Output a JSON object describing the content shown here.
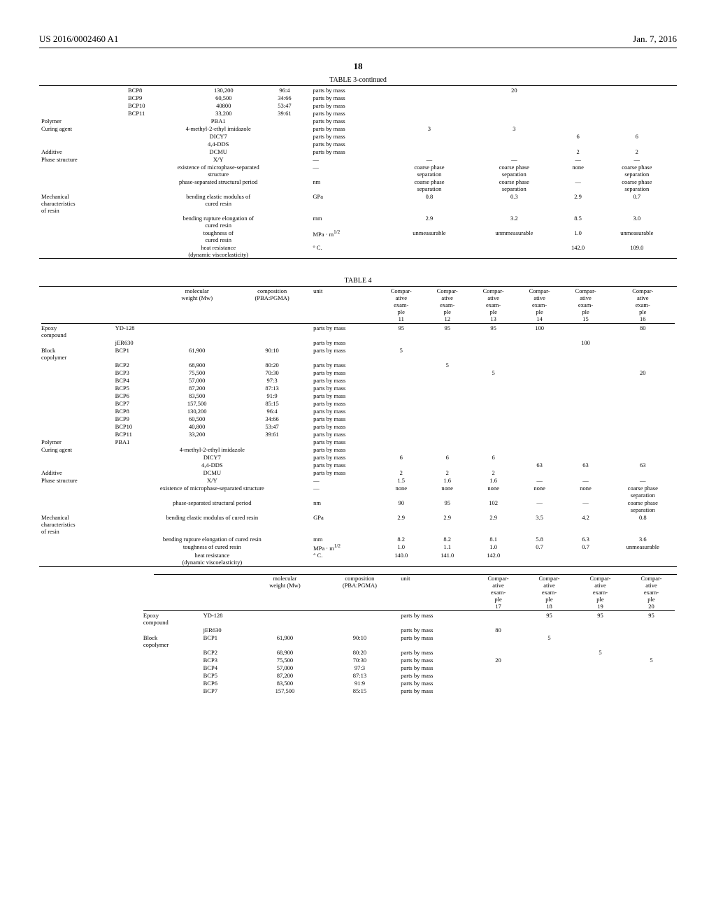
{
  "page": {
    "patent_no": "US 2016/0002460 A1",
    "date": "Jan. 7, 2016",
    "page_number": "18"
  },
  "table3": {
    "title": "TABLE 3-continued",
    "bcp_extra": [
      {
        "name": "BCP8",
        "mw": "130,200",
        "comp": "96:4",
        "unit": "parts by mass",
        "v1": "",
        "v2": "20",
        "v3": "",
        "v4": ""
      },
      {
        "name": "BCP9",
        "mw": "60,500",
        "comp": "34:66",
        "unit": "parts by mass",
        "v1": "",
        "v2": "",
        "v3": "",
        "v4": ""
      },
      {
        "name": "BCP10",
        "mw": "40800",
        "comp": "53:47",
        "unit": "parts by mass",
        "v1": "",
        "v2": "",
        "v3": "",
        "v4": ""
      },
      {
        "name": "BCP11",
        "mw": "33,200",
        "comp": "39:61",
        "unit": "parts by mass",
        "v1": "",
        "v2": "",
        "v3": "",
        "v4": ""
      }
    ],
    "rows": [
      {
        "cat": "Polymer",
        "label": "PBA1",
        "mw": "",
        "comp": "",
        "unit": "parts by mass",
        "v1": "",
        "v2": "",
        "v3": "",
        "v4": ""
      },
      {
        "cat": "Curing agent",
        "label": "4-methyl-2-ethyl imidazole",
        "unit": "parts by mass",
        "v1": "3",
        "v2": "3",
        "v3": "",
        "v4": ""
      },
      {
        "cat": "",
        "label": "DICY7",
        "unit": "parts by mass",
        "v1": "",
        "v2": "",
        "v3": "6",
        "v4": "6"
      },
      {
        "cat": "",
        "label": "4,4-DDS",
        "unit": "parts by mass",
        "v1": "",
        "v2": "",
        "v3": "",
        "v4": ""
      },
      {
        "cat": "Additive",
        "label": "DCMU",
        "unit": "parts by mass",
        "v1": "",
        "v2": "",
        "v3": "2",
        "v4": "2"
      },
      {
        "cat": "Phase structure",
        "label": "X/Y",
        "unit": "—",
        "v1": "—",
        "v2": "—",
        "v3": "—",
        "v4": "—"
      },
      {
        "cat": "",
        "label": "existence of microphase-separated structure",
        "unit": "—",
        "v1": "coarse phase separation",
        "v2": "coarse phase separation",
        "v3": "none",
        "v4": "coarse phase separation"
      },
      {
        "cat": "",
        "label": "phase-separated structural period",
        "unit": "nm",
        "v1": "coarse phase separation",
        "v2": "coarse phase separation",
        "v3": "—",
        "v4": "coarse phase separation"
      },
      {
        "cat": "Mechanical characteristics of resin",
        "label": "bending elastic modulus of cured resin",
        "unit": "GPa",
        "v1": "0.8",
        "v2": "0.3",
        "v3": "2.9",
        "v4": "0.7"
      },
      {
        "cat": "",
        "label": "bending rupture elongation of cured resin",
        "unit": "mm",
        "v1": "2.9",
        "v2": "3.2",
        "v3": "8.5",
        "v4": "3.0"
      },
      {
        "cat": "",
        "label": "toughness of cured resin",
        "unit": "MPa · m<sup>1/2</sup>",
        "v1": "unmeasurable",
        "v2": "unmmeasurable",
        "v3": "1.0",
        "v4": "unmeasurable"
      },
      {
        "cat": "",
        "label": "heat resistance (dynamic viscoelasticity)",
        "unit": "° C.",
        "v1": "",
        "v2": "",
        "v3": "142.0",
        "v4": "109.0"
      }
    ]
  },
  "table4": {
    "title": "TABLE 4",
    "head_cols": [
      "molecular weight (Mw)",
      "composition (PBA:PGMA)",
      "unit",
      "Compar- ative exam- ple 11",
      "Compar- ative exam- ple 12",
      "Compar- ative exam- ple 13",
      "Compar- ative exam- ple 14",
      "Compar- ative exam- ple 15",
      "Compar- ative exam- ple 16"
    ],
    "rows": [
      {
        "cat": "Epoxy compound",
        "label": "YD-128",
        "mw": "",
        "comp": "",
        "unit": "parts by mass",
        "v": [
          "95",
          "95",
          "95",
          "100",
          "",
          "80"
        ]
      },
      {
        "cat": "",
        "label": "jER630",
        "mw": "",
        "comp": "",
        "unit": "parts by mass",
        "v": [
          "",
          "",
          "",
          "",
          "100",
          ""
        ]
      },
      {
        "cat": "Block copolymer",
        "label": "BCP1",
        "mw": "61,900",
        "comp": "90:10",
        "unit": "parts by mass",
        "v": [
          "5",
          "",
          "",
          "",
          "",
          ""
        ]
      },
      {
        "cat": "",
        "label": "BCP2",
        "mw": "68,900",
        "comp": "80:20",
        "unit": "parts by mass",
        "v": [
          "",
          "5",
          "",
          "",
          "",
          ""
        ]
      },
      {
        "cat": "",
        "label": "BCP3",
        "mw": "75,500",
        "comp": "70:30",
        "unit": "parts by mass",
        "v": [
          "",
          "",
          "5",
          "",
          "",
          "20"
        ]
      },
      {
        "cat": "",
        "label": "BCP4",
        "mw": "57,000",
        "comp": "97:3",
        "unit": "parts by mass",
        "v": [
          "",
          "",
          "",
          "",
          "",
          ""
        ]
      },
      {
        "cat": "",
        "label": "BCP5",
        "mw": "87,200",
        "comp": "87:13",
        "unit": "parts by mass",
        "v": [
          "",
          "",
          "",
          "",
          "",
          ""
        ]
      },
      {
        "cat": "",
        "label": "BCP6",
        "mw": "83,500",
        "comp": "91:9",
        "unit": "parts by mass",
        "v": [
          "",
          "",
          "",
          "",
          "",
          ""
        ]
      },
      {
        "cat": "",
        "label": "BCP7",
        "mw": "157,500",
        "comp": "85:15",
        "unit": "parts by mass",
        "v": [
          "",
          "",
          "",
          "",
          "",
          ""
        ]
      },
      {
        "cat": "",
        "label": "BCP8",
        "mw": "130,200",
        "comp": "96:4",
        "unit": "parts by mass",
        "v": [
          "",
          "",
          "",
          "",
          "",
          ""
        ]
      },
      {
        "cat": "",
        "label": "BCP9",
        "mw": "60,500",
        "comp": "34:66",
        "unit": "parts by mass",
        "v": [
          "",
          "",
          "",
          "",
          "",
          ""
        ]
      },
      {
        "cat": "",
        "label": "BCP10",
        "mw": "40,800",
        "comp": "53:47",
        "unit": "parts by mass",
        "v": [
          "",
          "",
          "",
          "",
          "",
          ""
        ]
      },
      {
        "cat": "",
        "label": "BCP11",
        "mw": "33,200",
        "comp": "39:61",
        "unit": "parts by mass",
        "v": [
          "",
          "",
          "",
          "",
          "",
          ""
        ]
      },
      {
        "cat": "Polymer",
        "label": "PBA1",
        "mw": "",
        "comp": "",
        "unit": "parts by mass",
        "v": [
          "",
          "",
          "",
          "",
          "",
          ""
        ]
      },
      {
        "cat": "Curing agent",
        "label": "4-methyl-2-ethyl imidazole",
        "unit": "parts by mass",
        "v": [
          "",
          "",
          "",
          "",
          "",
          ""
        ]
      },
      {
        "cat": "",
        "label": "DICY7",
        "unit": "parts by mass",
        "v": [
          "6",
          "6",
          "6",
          "",
          "",
          ""
        ]
      },
      {
        "cat": "",
        "label": "4,4-DDS",
        "unit": "parts by mass",
        "v": [
          "",
          "",
          "",
          "63",
          "63",
          "63"
        ]
      },
      {
        "cat": "Additive",
        "label": "DCMU",
        "unit": "parts by mass",
        "v": [
          "2",
          "2",
          "2",
          "",
          "",
          ""
        ]
      },
      {
        "cat": "Phase structure",
        "label": "X/Y",
        "unit": "—",
        "v": [
          "1.5",
          "1.6",
          "1.6",
          "—",
          "—",
          "—"
        ]
      },
      {
        "cat": "",
        "label": "existence of microphase-separated structure",
        "unit": "—",
        "v": [
          "none",
          "none",
          "none",
          "none",
          "none",
          "coarse phase separation"
        ]
      },
      {
        "cat": "",
        "label": "phase-separated structural period",
        "unit": "nm",
        "v": [
          "90",
          "95",
          "102",
          "—",
          "—",
          "coarse phase separation"
        ]
      },
      {
        "cat": "Mechanical characteristics of resin",
        "label": "bending elastic modulus of cured resin",
        "unit": "GPa",
        "v": [
          "2.9",
          "2.9",
          "2.9",
          "3.5",
          "4.2",
          "0.8"
        ]
      },
      {
        "cat": "",
        "label": "bending rupture elongation of cured resin",
        "unit": "mm",
        "v": [
          "8.2",
          "8.2",
          "8.1",
          "5.8",
          "6.3",
          "3.6"
        ]
      },
      {
        "cat": "",
        "label": "toughness of cured resin",
        "unit": "MPa · m<sup>1/2</sup>",
        "v": [
          "1.0",
          "1.1",
          "1.0",
          "0.7",
          "0.7",
          "unmeasurable"
        ]
      },
      {
        "cat": "",
        "label": "heat resistance (dynamic viscoelasticity)",
        "unit": "° C.",
        "v": [
          "140.0",
          "141.0",
          "142.0",
          "",
          "",
          ""
        ]
      }
    ],
    "head_cols_b": [
      "molecular weight (Mw)",
      "composition (PBA:PGMA)",
      "unit",
      "Compar- ative exam- ple 17",
      "Compar- ative exam- ple 18",
      "Compar- ative exam- ple 19",
      "Compar- ative exam- ple 20"
    ],
    "rows_b": [
      {
        "cat": "Epoxy compound",
        "label": "YD-128",
        "mw": "",
        "comp": "",
        "unit": "parts by mass",
        "v": [
          "",
          "95",
          "95",
          "95"
        ]
      },
      {
        "cat": "",
        "label": "jER630",
        "mw": "",
        "comp": "",
        "unit": "parts by mass",
        "v": [
          "80",
          "",
          "",
          ""
        ]
      },
      {
        "cat": "Block copolymer",
        "label": "BCP1",
        "mw": "61,900",
        "comp": "90:10",
        "unit": "parts by mass",
        "v": [
          "",
          "5",
          "",
          ""
        ]
      },
      {
        "cat": "",
        "label": "BCP2",
        "mw": "68,900",
        "comp": "80:20",
        "unit": "parts by mass",
        "v": [
          "",
          "",
          "5",
          ""
        ]
      },
      {
        "cat": "",
        "label": "BCP3",
        "mw": "75,500",
        "comp": "70:30",
        "unit": "parts by mass",
        "v": [
          "20",
          "",
          "",
          "5"
        ]
      },
      {
        "cat": "",
        "label": "BCP4",
        "mw": "57,000",
        "comp": "97:3",
        "unit": "parts by mass",
        "v": [
          "",
          "",
          "",
          ""
        ]
      },
      {
        "cat": "",
        "label": "BCP5",
        "mw": "87,200",
        "comp": "87:13",
        "unit": "parts by mass",
        "v": [
          "",
          "",
          "",
          ""
        ]
      },
      {
        "cat": "",
        "label": "BCP6",
        "mw": "83,500",
        "comp": "91:9",
        "unit": "parts by mass",
        "v": [
          "",
          "",
          "",
          ""
        ]
      },
      {
        "cat": "",
        "label": "BCP7",
        "mw": "157,500",
        "comp": "85:15",
        "unit": "parts by mass",
        "v": [
          "",
          "",
          "",
          ""
        ]
      }
    ]
  }
}
